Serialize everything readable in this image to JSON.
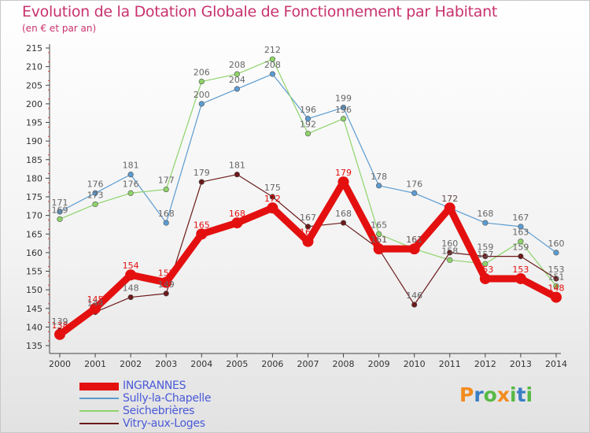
{
  "title": "Evolution de la Dotation Globale de Fonctionnement par Habitant",
  "subtitle": "(en € et par an)",
  "logo": {
    "text": "Proxiti",
    "colors": [
      "#f28c1e",
      "#3a7ec4",
      "#58b846",
      "#f28c1e",
      "#58b846",
      "#3a7ec4",
      "#58b846"
    ]
  },
  "chart_data": {
    "type": "line",
    "title": "Evolution de la Dotation Globale de Fonctionnement par Habitant",
    "subtitle": "(en € et par an)",
    "x": [
      "2000",
      "2001",
      "2002",
      "2003",
      "2004",
      "2005",
      "2006",
      "2007",
      "2008",
      "2009",
      "2010",
      "2011",
      "2012",
      "2013",
      "2014"
    ],
    "ylim": [
      135,
      215
    ],
    "yticks": [
      135,
      140,
      145,
      150,
      155,
      160,
      165,
      170,
      175,
      180,
      185,
      190,
      195,
      200,
      205,
      210,
      215
    ],
    "grid": false,
    "legend_position": "bottom-left",
    "series": [
      {
        "name": "INGRANNES",
        "color": "#e41010",
        "values": [
          138,
          145,
          154,
          152,
          165,
          168,
          172,
          163,
          179,
          161,
          161,
          172,
          153,
          153,
          148
        ]
      },
      {
        "name": "Sully-la-Chapelle",
        "color": "#5b9bd0",
        "values": [
          171,
          176,
          181,
          168,
          200,
          204,
          208,
          196,
          199,
          178,
          176,
          172,
          168,
          167,
          160
        ]
      },
      {
        "name": "Seichebrières",
        "color": "#8ed36a",
        "values": [
          169,
          173,
          176,
          177,
          206,
          208,
          212,
          192,
          196,
          165,
          161,
          158,
          157,
          163,
          151
        ]
      },
      {
        "name": "Vitry-aux-Loges",
        "color": "#6b1a1a",
        "values": [
          139,
          144,
          148,
          149,
          179,
          181,
          175,
          167,
          168,
          161,
          146,
          160,
          159,
          159,
          153
        ]
      }
    ]
  }
}
